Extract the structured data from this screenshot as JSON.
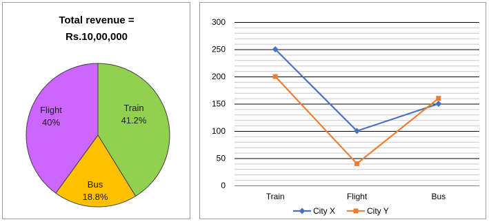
{
  "chart_data": [
    {
      "type": "pie",
      "title": [
        "Total revenue =",
        "Rs.10,00,000"
      ],
      "slices": [
        {
          "label": "Train",
          "value": 41.2,
          "display": "41.2%",
          "color": "#92d050"
        },
        {
          "label": "Bus",
          "value": 18.8,
          "display": "18.8%",
          "color": "#ffc000"
        },
        {
          "label": "Flight",
          "value": 40,
          "display": "40%",
          "color": "#cc66ff"
        }
      ]
    },
    {
      "type": "line",
      "categories": [
        "Train",
        "Flight",
        "Bus"
      ],
      "ylim": [
        0,
        300
      ],
      "yticks": [
        0,
        50,
        100,
        150,
        200,
        250,
        300
      ],
      "minor_step": 10,
      "grid": true,
      "legend_position": "bottom",
      "series": [
        {
          "name": "City X",
          "values": [
            250,
            100,
            150
          ],
          "color": "#4472c4",
          "marker": "diamond"
        },
        {
          "name": "City Y",
          "values": [
            200,
            40,
            160
          ],
          "color": "#ed7d31",
          "marker": "square"
        }
      ]
    }
  ]
}
